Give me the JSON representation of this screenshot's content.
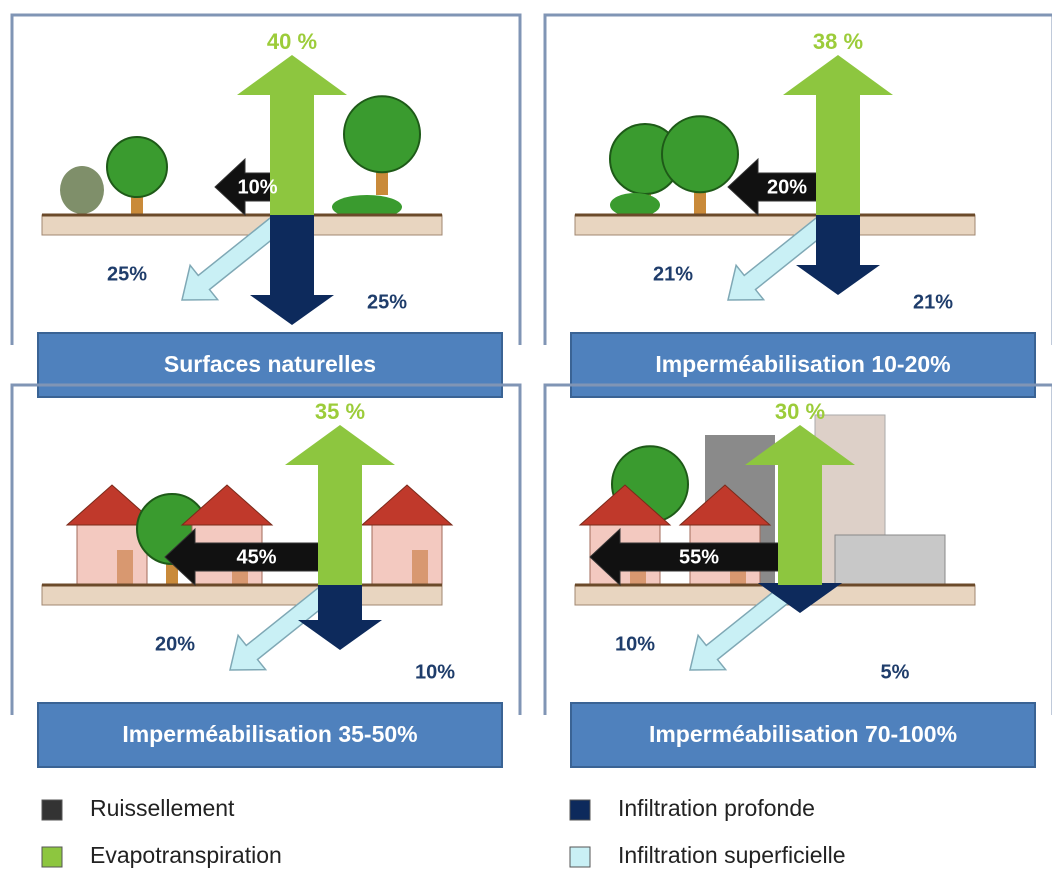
{
  "panels": [
    {
      "title": "Surfaces naturelles",
      "evapotranspiration": "40 %",
      "ruissellement": "10%",
      "infiltration_superficielle": "25%",
      "infiltration_profonde": "25%"
    },
    {
      "title": "Imperméabilisation 10-20%",
      "evapotranspiration": "38 %",
      "ruissellement": "20%",
      "infiltration_superficielle": "21%",
      "infiltration_profonde": "21%"
    },
    {
      "title": "Imperméabilisation 35-50%",
      "evapotranspiration": "35 %",
      "ruissellement": "45%",
      "infiltration_superficielle": "20%",
      "infiltration_profonde": "10%"
    },
    {
      "title": "Imperméabilisation 70-100%",
      "evapotranspiration": "30 %",
      "ruissellement": "55%",
      "infiltration_superficielle": "10%",
      "infiltration_profonde": "5%"
    }
  ],
  "legend": [
    {
      "label": "Ruissellement",
      "color": "#333333"
    },
    {
      "label": "Evapotranspiration",
      "color": "#8dc63f"
    },
    {
      "label": "Infiltration profonde",
      "color": "#0d2a5c"
    },
    {
      "label": "Infiltration superficielle",
      "color": "#c9f0f5"
    }
  ]
}
